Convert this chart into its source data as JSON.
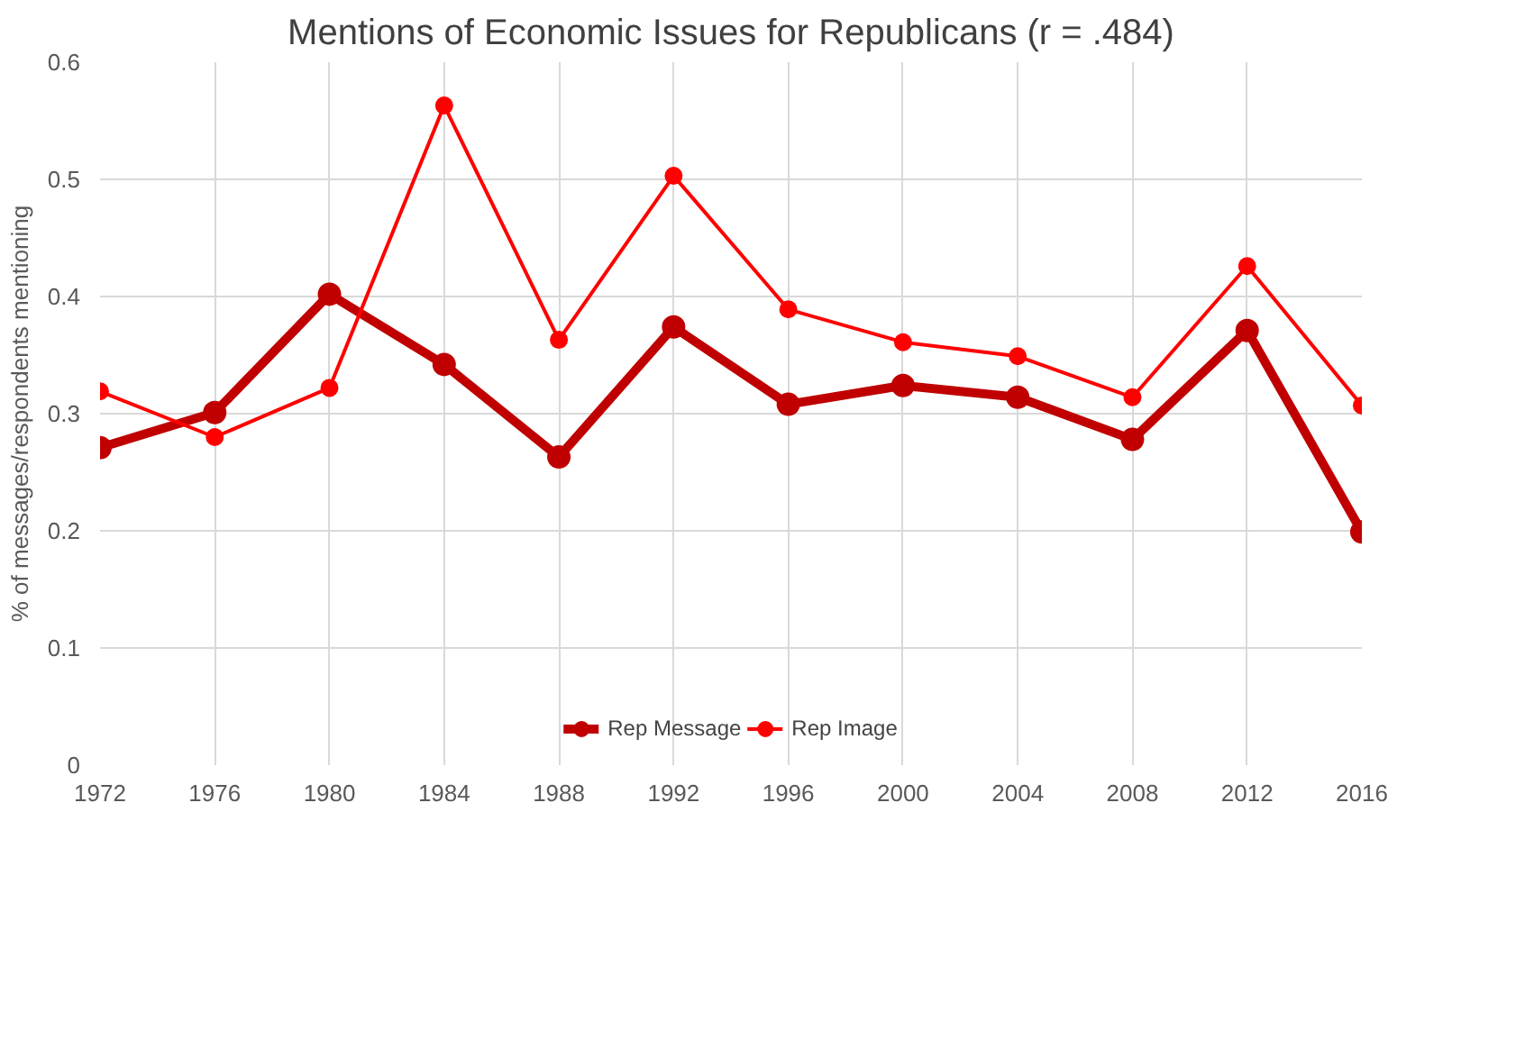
{
  "chart_data": {
    "type": "line",
    "title": "Mentions of Economic Issues for Republicans (r = .484)",
    "ylabel": "% of messages/respondents mentioning",
    "categories": [
      "1972",
      "1976",
      "1980",
      "1984",
      "1988",
      "1992",
      "1996",
      "2000",
      "2004",
      "2008",
      "2012",
      "2016"
    ],
    "series": [
      {
        "name": "Rep Message",
        "color": "#c00000",
        "values": [
          0.271,
          0.301,
          0.402,
          0.342,
          0.263,
          0.374,
          0.308,
          0.324,
          0.314,
          0.278,
          0.371,
          0.199
        ]
      },
      {
        "name": "Rep Image",
        "color": "#ff0000",
        "values": [
          0.319,
          0.28,
          0.322,
          0.563,
          0.363,
          0.503,
          0.389,
          0.361,
          0.349,
          0.314,
          0.426,
          0.307
        ]
      }
    ],
    "ylim": [
      0,
      0.6
    ],
    "yticks": [
      {
        "value": 0,
        "label": "0"
      },
      0.1,
      0.2,
      0.3,
      0.4,
      0.5,
      0.6
    ],
    "grid": true,
    "legend": "bottom",
    "marker": "circle"
  }
}
